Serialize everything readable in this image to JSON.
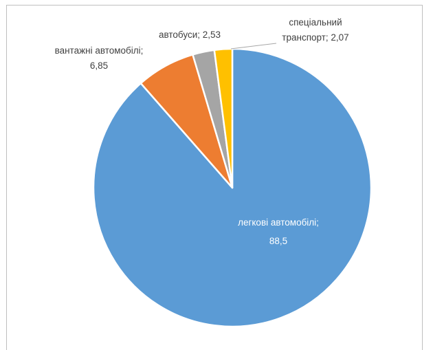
{
  "chart_data": {
    "type": "pie",
    "title": "",
    "slices": [
      {
        "label": "легкові автомобілі",
        "value": 88.5,
        "value_text": "88,5",
        "color": "#5b9bd5",
        "label_color": "#ffffff"
      },
      {
        "label": "вантажні автомобілі",
        "value": 6.85,
        "value_text": "6,85",
        "color": "#ed7d31",
        "label_color": "#404040"
      },
      {
        "label": "автобуси",
        "value": 2.53,
        "value_text": "2,53",
        "color": "#a5a5a5",
        "label_color": "#404040"
      },
      {
        "label": "спеціальний транспорт",
        "value": 2.07,
        "value_text": "2,07",
        "color": "#ffc000",
        "label_color": "#404040"
      }
    ],
    "start": "top",
    "direction": "clockwise",
    "data_labels": [
      {
        "lines": [
          "легкові автомобілі;",
          "88,5"
        ]
      },
      {
        "lines": [
          "вантажні автомобілі;",
          "6,85"
        ]
      },
      {
        "lines": [
          "автобуси; 2,53"
        ]
      },
      {
        "lines": [
          "спеціальний",
          "транспорт; 2,07"
        ]
      }
    ],
    "legend": "none"
  }
}
